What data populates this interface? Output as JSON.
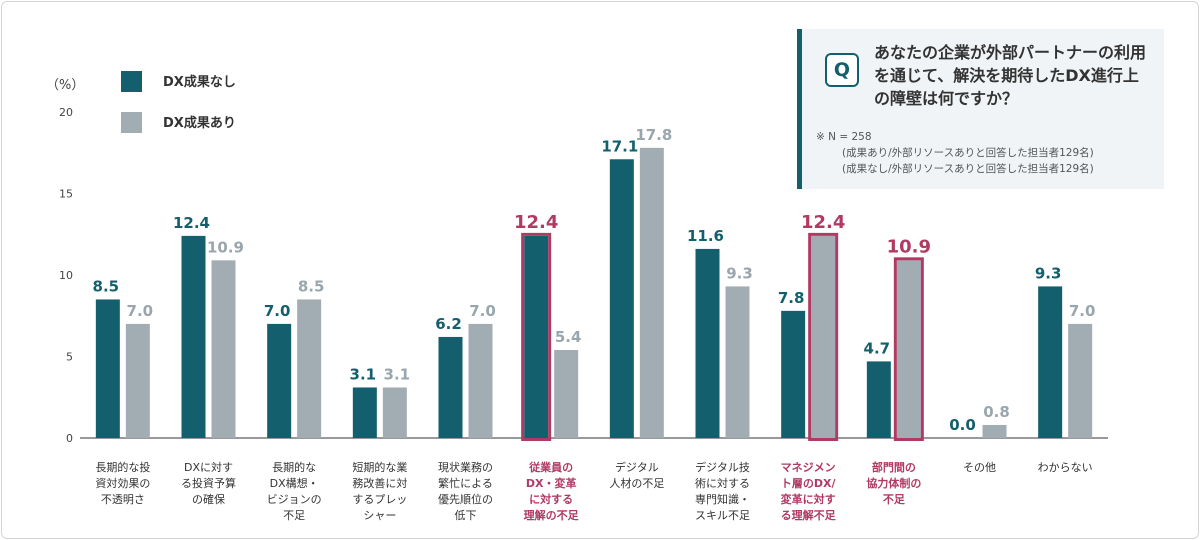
{
  "chart_data": {
    "type": "bar",
    "unit_label": "（%）",
    "ylim": [
      0,
      20
    ],
    "yticks": [
      0,
      5,
      10,
      15,
      20
    ],
    "series": [
      {
        "name": "DX成果なし",
        "color": "#135f6e",
        "values": [
          8.5,
          12.4,
          7.0,
          3.1,
          6.2,
          12.4,
          17.1,
          11.6,
          7.8,
          4.7,
          0.0,
          9.3
        ]
      },
      {
        "name": "DX成果あり",
        "color": "#a2adb3",
        "values": [
          7.0,
          10.9,
          8.5,
          3.1,
          7.0,
          5.4,
          17.8,
          9.3,
          12.4,
          10.9,
          0.8,
          7.0
        ]
      }
    ],
    "categories": [
      [
        "長期的な投",
        "資対効果の",
        "不透明さ"
      ],
      [
        "DXに対す",
        "る投資予算",
        "の確保"
      ],
      [
        "長期的な",
        "DX構想・",
        "ビジョンの",
        "不足"
      ],
      [
        "短期的な業",
        "務改善に対",
        "するプレッ",
        "シャー"
      ],
      [
        "現状業務の",
        "繁忙による",
        "優先順位の",
        "低下"
      ],
      [
        "従業員の",
        "DX・変革",
        "に対する",
        "理解の不足"
      ],
      [
        "デジタル",
        "人材の不足"
      ],
      [
        "デジタル技",
        "術に対する",
        "専門知識・",
        "スキル不足"
      ],
      [
        "マネジメン",
        "ト層のDX/",
        "変革に対す",
        "る理解不足"
      ],
      [
        "部門間の",
        "協力体制の",
        "不足"
      ],
      [
        "その他"
      ],
      [
        "わからない"
      ]
    ],
    "highlights": [
      {
        "category": 5,
        "series": 0
      },
      {
        "category": 8,
        "series": 1
      },
      {
        "category": 9,
        "series": 1
      }
    ],
    "highlight_color": "#b03a64",
    "label_color_nashi": "#135f6e",
    "label_color_ari": "#9aa6ad"
  },
  "question": {
    "badge": "Q",
    "text": "あなたの企業が外部パートナーの利用を通じて、解決を期待したDX進行上の障壁は何ですか？",
    "note1": "※ N = 258",
    "note2": "(成果あり/外部リソースありと回答した担当者129名)",
    "note3": "(成果なし/外部リソースありと回答した担当者129名)"
  }
}
